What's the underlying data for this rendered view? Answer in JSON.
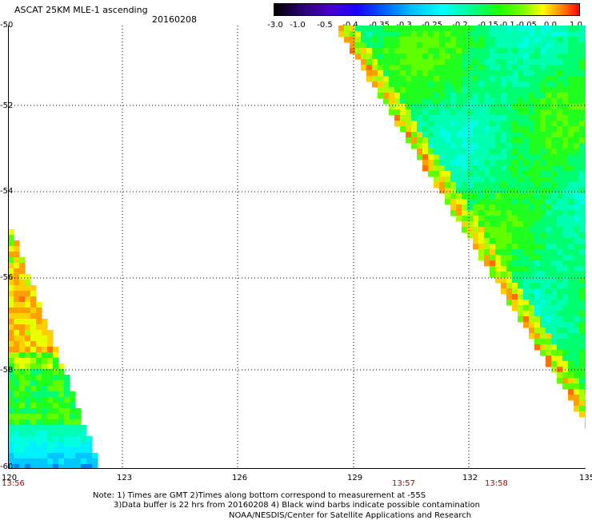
{
  "header": {
    "title": "ASCAT 25KM MLE-1 ascending",
    "date": "20160208"
  },
  "colorbar": {
    "labels": [
      "-3.0",
      "-1.0",
      "-0.5",
      "-0.4",
      "-0.35",
      "-0.3",
      "-0.25",
      "-0.2",
      "-0.15",
      "-0.1",
      "-0.05",
      "0.0",
      "1.0"
    ]
  },
  "axes": {
    "lat_labels": [
      "-50",
      "-52",
      "-54",
      "-56",
      "-58",
      "-60"
    ],
    "lon_labels": [
      "120",
      "123",
      "126",
      "129",
      "132",
      "135"
    ],
    "time_labels": [
      "13:56",
      "13:57",
      "13:58"
    ]
  },
  "notes": {
    "line1": "Note: 1) Times are GMT 2)Times along bottom correspond to measurement at -55S",
    "line2": "3)Data buffer is 22 hrs from 20160208 4) Black wind barbs indicate possible contamination",
    "credit": "NOAA/NESDIS/Center for Satellite Applications and Research"
  },
  "chart_data": {
    "type": "heatmap",
    "title": "ASCAT 25KM MLE-1 ascending",
    "date": "20160208",
    "x_axis": {
      "unit": "degrees longitude",
      "range": [
        120,
        135
      ],
      "ticks": [
        120,
        123,
        126,
        129,
        132,
        135
      ]
    },
    "y_axis": {
      "unit": "degrees latitude",
      "range": [
        -60,
        -50
      ],
      "ticks": [
        -50,
        -52,
        -54,
        -56,
        -58,
        -60
      ]
    },
    "color_scale": {
      "min": -3.0,
      "max": 1.0,
      "labels": [
        -3.0,
        -1.0,
        -0.5,
        -0.4,
        -0.35,
        -0.3,
        -0.25,
        -0.2,
        -0.15,
        -0.1,
        -0.05,
        0.0,
        1.0
      ]
    },
    "gridlines": true,
    "swaths": [
      {
        "name": "left swath",
        "region": "lon 120 to 122.4, lat -55.4 to -60",
        "dominant_values": "orange/yellow near -57.5, green mid, cyan/blue toward -60"
      },
      {
        "name": "right swath",
        "region": "lon 128.6 to 135, lat -50 to -59",
        "dominant_values": "cyan to green, orange along western edge"
      }
    ]
  }
}
